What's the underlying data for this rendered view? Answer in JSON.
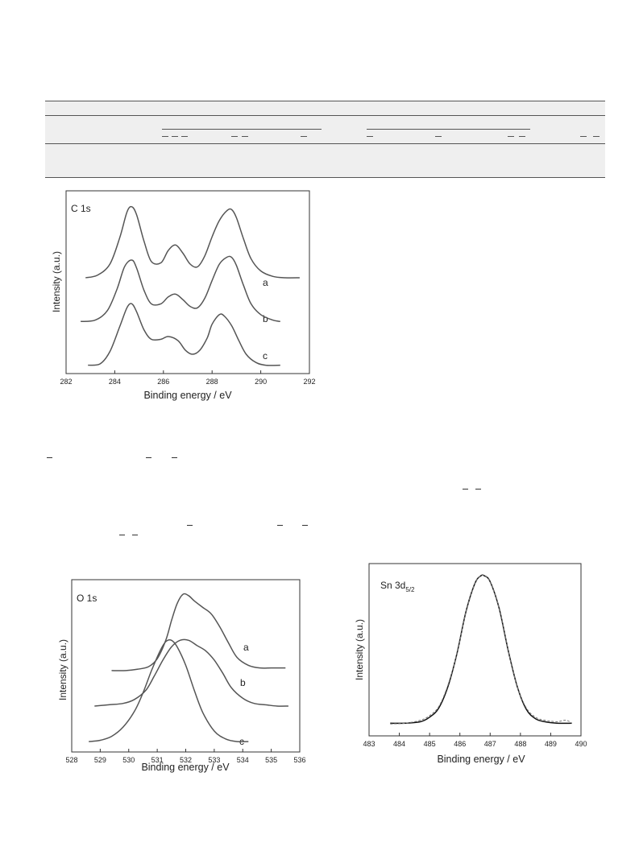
{
  "charts": {
    "c1s": {
      "panel_label": "C 1s",
      "curve_labels": [
        "a",
        "b",
        "c"
      ]
    },
    "o1s": {
      "panel_label": "O 1s",
      "curve_labels": [
        "a",
        "b",
        "c"
      ]
    },
    "sn3d": {
      "panel_label_main": "Sn 3d",
      "panel_label_sub": "5/2"
    }
  },
  "chart_data": [
    {
      "type": "line",
      "title": "",
      "xlabel": "Binding energy / eV",
      "ylabel": "Intensity (a.u.)",
      "xlim": [
        282,
        292
      ],
      "xticks": [
        282,
        284,
        286,
        288,
        290,
        292
      ],
      "yticks": [],
      "grid": false,
      "series": [
        {
          "name": "a",
          "x": [
            282.8,
            283.3,
            283.8,
            284.2,
            284.5,
            284.7,
            284.9,
            285.2,
            285.5,
            285.9,
            286.2,
            286.5,
            286.8,
            287.1,
            287.4,
            287.7,
            288.0,
            288.3,
            288.6,
            288.8,
            289.0,
            289.3,
            289.6,
            290.0,
            290.5,
            291.0,
            291.6
          ],
          "y": [
            0.66,
            0.68,
            0.76,
            0.95,
            1.14,
            1.18,
            1.12,
            0.93,
            0.78,
            0.77,
            0.86,
            0.9,
            0.84,
            0.76,
            0.74,
            0.82,
            0.96,
            1.08,
            1.15,
            1.16,
            1.1,
            0.94,
            0.8,
            0.71,
            0.67,
            0.66,
            0.66
          ]
        },
        {
          "name": "b",
          "x": [
            282.6,
            283.2,
            283.7,
            284.1,
            284.4,
            284.7,
            284.9,
            285.2,
            285.5,
            285.9,
            286.2,
            286.5,
            286.8,
            287.1,
            287.4,
            287.7,
            288.0,
            288.3,
            288.6,
            288.8,
            289.0,
            289.3,
            289.6,
            290.0,
            290.5,
            290.8
          ],
          "y": [
            0.34,
            0.35,
            0.42,
            0.58,
            0.74,
            0.79,
            0.73,
            0.57,
            0.47,
            0.47,
            0.52,
            0.54,
            0.5,
            0.45,
            0.44,
            0.51,
            0.64,
            0.76,
            0.81,
            0.81,
            0.75,
            0.6,
            0.47,
            0.39,
            0.35,
            0.34
          ]
        },
        {
          "name": "c",
          "x": [
            282.9,
            283.4,
            283.8,
            284.2,
            284.5,
            284.7,
            284.9,
            285.2,
            285.5,
            285.9,
            286.2,
            286.6,
            286.9,
            287.2,
            287.5,
            287.8,
            288.0,
            288.3,
            288.5,
            288.8,
            289.1,
            289.4,
            289.8,
            290.2,
            290.8
          ],
          "y": [
            0.02,
            0.03,
            0.12,
            0.3,
            0.44,
            0.47,
            0.41,
            0.28,
            0.21,
            0.21,
            0.23,
            0.2,
            0.13,
            0.1,
            0.13,
            0.22,
            0.32,
            0.39,
            0.38,
            0.31,
            0.2,
            0.1,
            0.04,
            0.02,
            0.02
          ]
        }
      ]
    },
    {
      "type": "line",
      "title": "",
      "xlabel": "Binding energy / eV",
      "ylabel": "Intensity (a.u.)",
      "xlim": [
        528,
        536
      ],
      "xticks": [
        528,
        529,
        530,
        531,
        532,
        533,
        534,
        535,
        536
      ],
      "yticks": [],
      "grid": false,
      "series": [
        {
          "name": "a",
          "x": [
            529.4,
            529.9,
            530.3,
            530.7,
            531.0,
            531.3,
            531.5,
            531.7,
            531.9,
            532.1,
            532.3,
            532.6,
            532.9,
            533.2,
            533.5,
            533.8,
            534.2,
            534.6,
            535.0,
            535.5
          ],
          "y": [
            0.57,
            0.57,
            0.58,
            0.6,
            0.66,
            0.8,
            0.95,
            1.08,
            1.15,
            1.14,
            1.1,
            1.05,
            1.0,
            0.9,
            0.78,
            0.67,
            0.61,
            0.59,
            0.59,
            0.59
          ]
        },
        {
          "name": "b",
          "x": [
            528.8,
            529.3,
            529.8,
            530.2,
            530.6,
            530.9,
            531.2,
            531.5,
            531.8,
            532.1,
            532.4,
            532.7,
            533.0,
            533.3,
            533.6,
            534.0,
            534.4,
            534.8,
            535.2,
            535.6
          ],
          "y": [
            0.3,
            0.31,
            0.32,
            0.35,
            0.42,
            0.53,
            0.65,
            0.75,
            0.8,
            0.8,
            0.76,
            0.72,
            0.65,
            0.55,
            0.44,
            0.36,
            0.32,
            0.31,
            0.3,
            0.3
          ]
        },
        {
          "name": "c",
          "x": [
            528.6,
            529.0,
            529.4,
            529.8,
            530.2,
            530.5,
            530.8,
            531.1,
            531.3,
            531.5,
            531.7,
            532.0,
            532.3,
            532.6,
            533.0,
            533.4,
            533.8,
            534.2
          ],
          "y": [
            0.03,
            0.04,
            0.07,
            0.14,
            0.26,
            0.4,
            0.57,
            0.72,
            0.79,
            0.8,
            0.75,
            0.61,
            0.42,
            0.25,
            0.11,
            0.05,
            0.03,
            0.03
          ]
        }
      ]
    },
    {
      "type": "line",
      "title": "",
      "xlabel": "Binding energy / eV",
      "ylabel": "Intensity (a.u.)",
      "xlim": [
        483,
        490
      ],
      "xticks": [
        483,
        484,
        485,
        486,
        487,
        488,
        489,
        490
      ],
      "yticks": [],
      "grid": false,
      "series": [
        {
          "x": [
            483.7,
            484.2,
            484.7,
            485.0,
            485.3,
            485.6,
            485.9,
            486.2,
            486.5,
            486.7,
            486.8,
            487.0,
            487.3,
            487.6,
            487.9,
            488.2,
            488.5,
            488.8,
            489.2,
            489.7
          ],
          "y": [
            0.02,
            0.02,
            0.03,
            0.06,
            0.12,
            0.26,
            0.48,
            0.76,
            0.95,
            1.0,
            1.0,
            0.96,
            0.78,
            0.5,
            0.26,
            0.11,
            0.05,
            0.03,
            0.02,
            0.02
          ]
        },
        {
          "x": [
            483.7,
            484.2,
            484.7,
            485.0,
            485.3,
            485.6,
            485.9,
            486.2,
            486.5,
            486.7,
            486.8,
            487.0,
            487.3,
            487.6,
            487.9,
            488.2,
            488.5,
            488.8,
            489.2,
            489.5,
            489.7
          ],
          "y": [
            0.015,
            0.02,
            0.04,
            0.07,
            0.13,
            0.27,
            0.48,
            0.76,
            0.95,
            1.0,
            1.0,
            0.96,
            0.78,
            0.5,
            0.26,
            0.12,
            0.06,
            0.04,
            0.03,
            0.04,
            0.02
          ]
        }
      ]
    }
  ]
}
